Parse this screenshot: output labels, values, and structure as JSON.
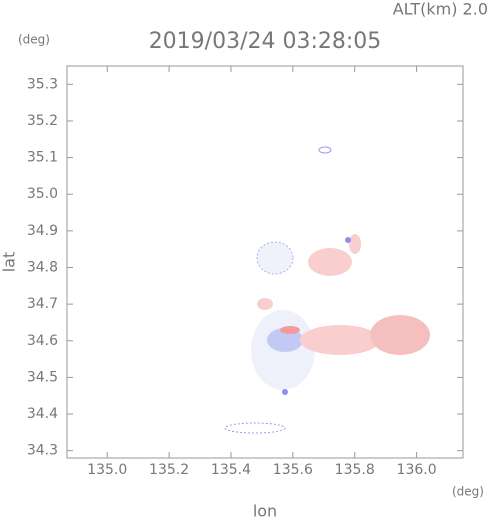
{
  "chart_data": {
    "type": "map",
    "title": "2019/03/24 03:28:05",
    "altitude_label": "ALT(km) 2.0",
    "y_unit": "(deg)",
    "x_unit": "(deg)",
    "xlabel": "lon",
    "ylabel": "lat",
    "xlim": [
      134.87,
      136.15
    ],
    "ylim": [
      34.28,
      35.35
    ],
    "xticks": [
      {
        "value": 135.0,
        "label": "135.0"
      },
      135.2,
      135.4,
      135.6,
      135.8,
      {
        "value": 136.0,
        "label": "136.0"
      }
    ],
    "yticks": [
      34.3,
      34.4,
      34.5,
      34.6,
      34.7,
      34.8,
      34.9,
      {
        "value": 35.0,
        "label": "35.0"
      },
      35.1,
      35.2,
      35.3
    ]
  }
}
